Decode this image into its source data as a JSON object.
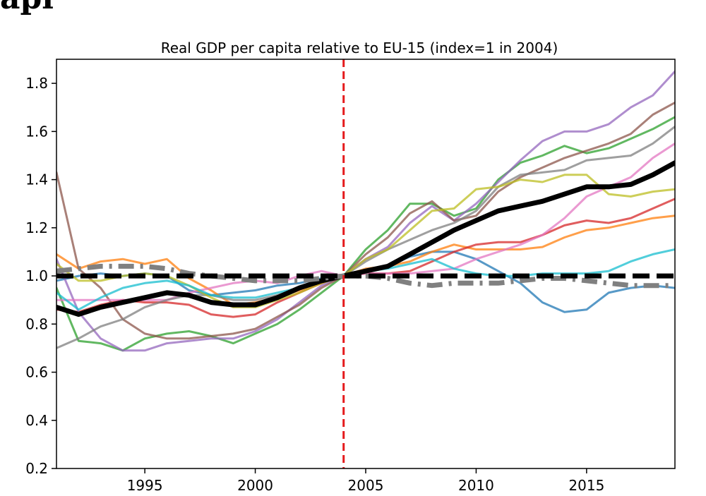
{
  "chart_data": {
    "type": "line",
    "title": "Real GDP per capita relative to EU-15 (index=1 in 2004)",
    "xlabel": "",
    "ylabel": "",
    "xlim": [
      1991,
      2019
    ],
    "ylim": [
      0.2,
      1.9
    ],
    "x_ticks": [
      1995,
      2000,
      2005,
      2010,
      2015
    ],
    "y_ticks": [
      0.2,
      0.4,
      0.6,
      0.8,
      1.0,
      1.2,
      1.4,
      1.6,
      1.8
    ],
    "x_tick_labels": [
      "1995",
      "2000",
      "2005",
      "2010",
      "2015"
    ],
    "y_tick_labels": [
      "0.2",
      "0.4",
      "0.6",
      "0.8",
      "1.0",
      "1.2",
      "1.4",
      "1.6",
      "1.8"
    ],
    "vertical_line": {
      "x": 2004,
      "color": "#e41a1c",
      "style": "dashed"
    },
    "x": [
      1991,
      1992,
      1993,
      1994,
      1995,
      1996,
      1997,
      1998,
      1999,
      2000,
      2001,
      2002,
      2003,
      2004,
      2005,
      2006,
      2007,
      2008,
      2009,
      2010,
      2011,
      2012,
      2013,
      2014,
      2015,
      2016,
      2017,
      2018,
      2019
    ],
    "series": [
      {
        "name": "blue",
        "color": "#1f77b4",
        "values": [
          0.98,
          1.0,
          1.01,
          1.0,
          1.01,
          1.0,
          0.94,
          0.92,
          0.93,
          0.94,
          0.96,
          0.97,
          0.99,
          1.0,
          1.02,
          1.04,
          1.08,
          1.1,
          1.1,
          1.07,
          1.02,
          0.97,
          0.89,
          0.85,
          0.86,
          0.93,
          0.95,
          0.96,
          0.95
        ]
      },
      {
        "name": "orange",
        "color": "#ff7f0e",
        "values": [
          1.09,
          1.03,
          1.06,
          1.07,
          1.05,
          1.07,
          0.99,
          0.94,
          0.88,
          0.89,
          0.91,
          0.94,
          0.97,
          1.0,
          1.03,
          1.04,
          1.06,
          1.1,
          1.13,
          1.11,
          1.11,
          1.11,
          1.12,
          1.16,
          1.19,
          1.2,
          1.22,
          1.24,
          1.25
        ]
      },
      {
        "name": "green",
        "color": "#2ca02c",
        "values": [
          0.95,
          0.73,
          0.72,
          0.69,
          0.74,
          0.76,
          0.77,
          0.75,
          0.72,
          0.76,
          0.8,
          0.86,
          0.93,
          1.0,
          1.11,
          1.19,
          1.3,
          1.3,
          1.25,
          1.28,
          1.4,
          1.47,
          1.5,
          1.54,
          1.51,
          1.53,
          1.57,
          1.61,
          1.66
        ]
      },
      {
        "name": "red",
        "color": "#d62728",
        "values": [
          0.86,
          0.85,
          0.88,
          0.9,
          0.89,
          0.89,
          0.88,
          0.84,
          0.83,
          0.84,
          0.89,
          0.93,
          0.97,
          1.0,
          1.01,
          1.01,
          1.02,
          1.06,
          1.1,
          1.13,
          1.14,
          1.14,
          1.17,
          1.21,
          1.23,
          1.22,
          1.24,
          1.28,
          1.32
        ]
      },
      {
        "name": "purple",
        "color": "#9467bd",
        "values": [
          1.07,
          0.85,
          0.74,
          0.69,
          0.69,
          0.72,
          0.73,
          0.74,
          0.74,
          0.77,
          0.82,
          0.89,
          0.96,
          1.0,
          1.07,
          1.12,
          1.22,
          1.29,
          1.23,
          1.3,
          1.39,
          1.48,
          1.56,
          1.6,
          1.6,
          1.63,
          1.7,
          1.75,
          1.85
        ]
      },
      {
        "name": "brown",
        "color": "#8c564b",
        "values": [
          1.43,
          1.03,
          0.95,
          0.82,
          0.76,
          0.74,
          0.74,
          0.75,
          0.76,
          0.78,
          0.83,
          0.88,
          0.95,
          1.0,
          1.09,
          1.16,
          1.26,
          1.31,
          1.23,
          1.25,
          1.35,
          1.41,
          1.45,
          1.49,
          1.52,
          1.55,
          1.59,
          1.67,
          1.72
        ]
      },
      {
        "name": "pink",
        "color": "#e377c2",
        "values": [
          0.9,
          0.9,
          0.9,
          0.9,
          0.9,
          0.9,
          0.93,
          0.95,
          0.97,
          0.98,
          0.97,
          1.0,
          1.02,
          1.0,
          1.01,
          1.01,
          1.01,
          1.02,
          1.03,
          1.07,
          1.1,
          1.13,
          1.17,
          1.24,
          1.33,
          1.37,
          1.41,
          1.49,
          1.55
        ]
      },
      {
        "name": "gray",
        "color": "#7f7f7f",
        "values": [
          0.7,
          0.74,
          0.79,
          0.82,
          0.87,
          0.9,
          0.92,
          0.92,
          0.9,
          0.9,
          0.92,
          0.95,
          0.98,
          1.0,
          1.06,
          1.11,
          1.15,
          1.19,
          1.22,
          1.27,
          1.37,
          1.42,
          1.43,
          1.44,
          1.48,
          1.49,
          1.5,
          1.55,
          1.62
        ]
      },
      {
        "name": "olive",
        "color": "#bcbd22",
        "values": [
          1.05,
          0.98,
          0.98,
          1.0,
          1.01,
          1.0,
          0.96,
          0.91,
          0.87,
          0.87,
          0.9,
          0.93,
          0.97,
          1.0,
          1.07,
          1.11,
          1.19,
          1.27,
          1.28,
          1.36,
          1.37,
          1.4,
          1.39,
          1.42,
          1.42,
          1.34,
          1.33,
          1.35,
          1.36
        ]
      },
      {
        "name": "cyan",
        "color": "#17becf",
        "values": [
          0.93,
          0.86,
          0.91,
          0.95,
          0.97,
          0.98,
          0.96,
          0.92,
          0.91,
          0.91,
          0.93,
          0.95,
          0.98,
          1.0,
          1.02,
          1.03,
          1.05,
          1.07,
          1.03,
          1.01,
          1.0,
          1.0,
          1.01,
          1.01,
          1.01,
          1.02,
          1.06,
          1.09,
          1.11
        ]
      },
      {
        "name": "average",
        "color": "#000000",
        "width": 7,
        "values": [
          0.87,
          0.84,
          0.87,
          0.89,
          0.91,
          0.93,
          0.92,
          0.89,
          0.88,
          0.88,
          0.91,
          0.95,
          0.98,
          1.0,
          1.02,
          1.04,
          1.09,
          1.14,
          1.19,
          1.23,
          1.27,
          1.29,
          1.31,
          1.34,
          1.37,
          1.37,
          1.38,
          1.42,
          1.47
        ]
      },
      {
        "name": "reference-dashdot",
        "color": "#808080",
        "width": 7,
        "dash": "22,9,4,9",
        "values": [
          1.02,
          1.03,
          1.04,
          1.04,
          1.04,
          1.03,
          1.01,
          1.0,
          0.99,
          0.98,
          0.98,
          0.98,
          0.99,
          1.0,
          1.0,
          0.99,
          0.97,
          0.96,
          0.97,
          0.97,
          0.97,
          0.98,
          0.99,
          0.99,
          0.98,
          0.97,
          0.96,
          0.96,
          0.96
        ]
      },
      {
        "name": "eu15-baseline",
        "color": "#000000",
        "width": 7,
        "dash": "24,10",
        "values": [
          1.0,
          1.0,
          1.0,
          1.0,
          1.0,
          1.0,
          1.0,
          1.0,
          1.0,
          1.0,
          1.0,
          1.0,
          1.0,
          1.0,
          1.0,
          1.0,
          1.0,
          1.0,
          1.0,
          1.0,
          1.0,
          1.0,
          1.0,
          1.0,
          1.0,
          1.0,
          1.0,
          1.0,
          1.0
        ]
      }
    ]
  }
}
